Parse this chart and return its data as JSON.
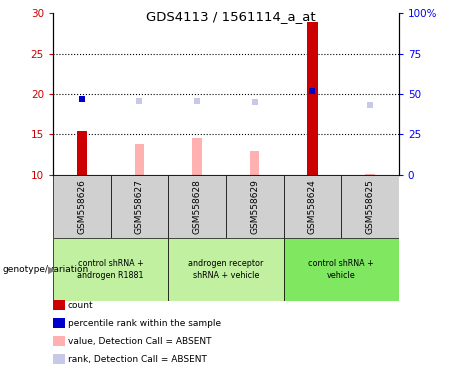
{
  "title": "GDS4113 / 1561114_a_at",
  "samples": [
    "GSM558626",
    "GSM558627",
    "GSM558628",
    "GSM558629",
    "GSM558624",
    "GSM558625"
  ],
  "count_values": [
    15.4,
    null,
    null,
    null,
    29.0,
    null
  ],
  "count_color": "#cc0000",
  "percentile_values": [
    47.0,
    null,
    null,
    null,
    52.0,
    null
  ],
  "percentile_color": "#0000cc",
  "value_absent": [
    null,
    13.8,
    14.6,
    13.0,
    null,
    10.1
  ],
  "value_absent_color": "#ffb0b0",
  "rank_absent": [
    null,
    46.0,
    46.0,
    45.0,
    null,
    43.0
  ],
  "rank_absent_color": "#c8c8e8",
  "ylim_left": [
    10,
    30
  ],
  "ylim_right": [
    0,
    100
  ],
  "yticks_left": [
    10,
    15,
    20,
    25,
    30
  ],
  "yticks_right": [
    0,
    25,
    50,
    75,
    100
  ],
  "ytick_labels_right": [
    "0",
    "25",
    "50",
    "75",
    "100%"
  ],
  "dotted_lines": [
    15,
    20,
    25
  ],
  "bar_width": 0.18,
  "marker_size": 5,
  "sample_bg": "#d0d0d0",
  "group_configs": [
    {
      "start": 0,
      "end": 1,
      "label": "control shRNA +\nandrogen R1881",
      "color": "#c0f0a0"
    },
    {
      "start": 2,
      "end": 3,
      "label": "androgen receptor\nshRNA + vehicle",
      "color": "#c0f0a0"
    },
    {
      "start": 4,
      "end": 5,
      "label": "control shRNA +\nvehicle",
      "color": "#80e860"
    }
  ],
  "legend_items": [
    {
      "label": "count",
      "color": "#cc0000"
    },
    {
      "label": "percentile rank within the sample",
      "color": "#0000cc"
    },
    {
      "label": "value, Detection Call = ABSENT",
      "color": "#ffb0b0"
    },
    {
      "label": "rank, Detection Call = ABSENT",
      "color": "#c8c8e8"
    }
  ]
}
